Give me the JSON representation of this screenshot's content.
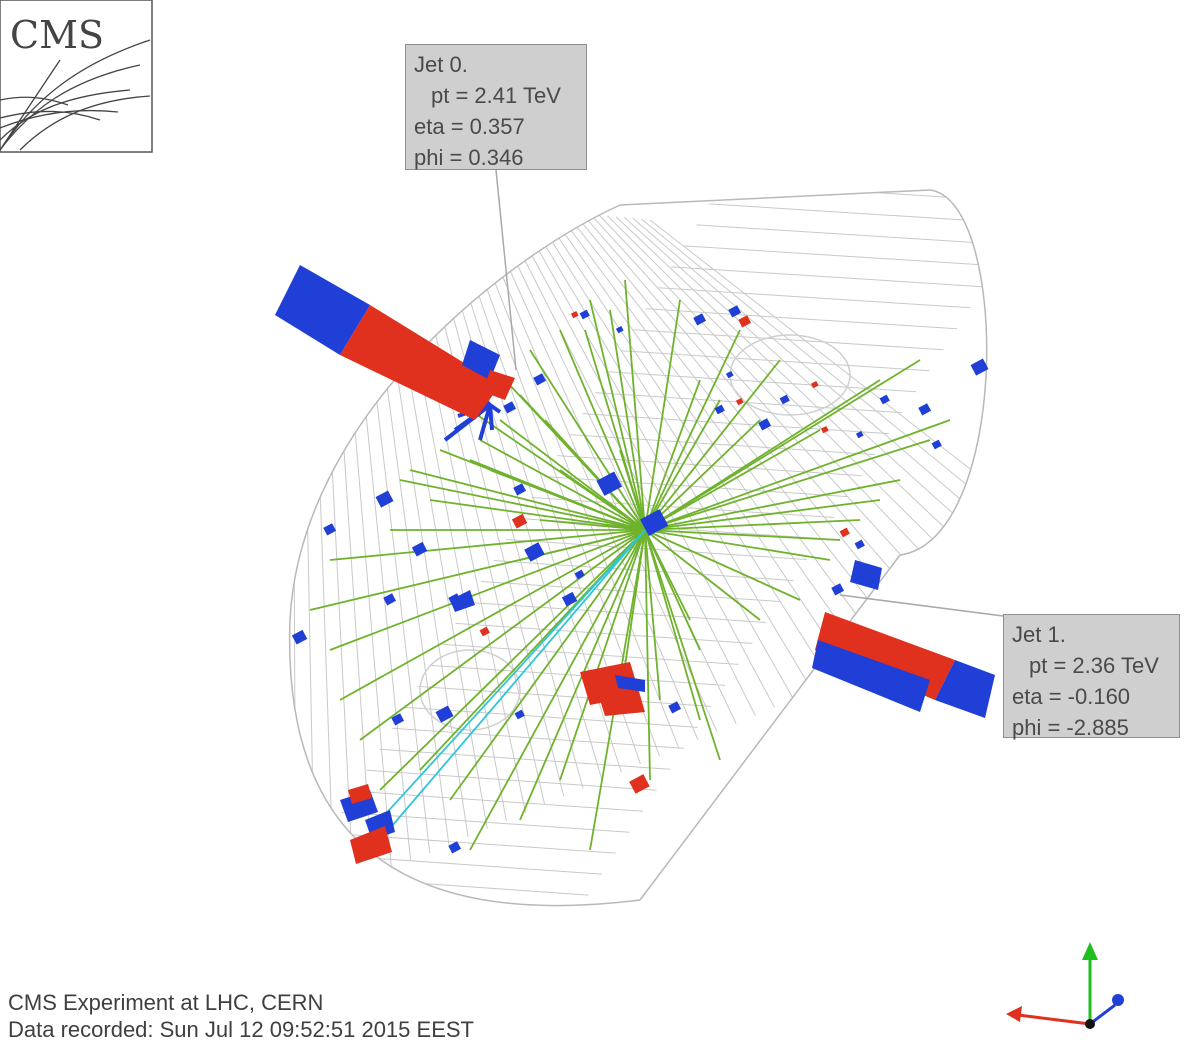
{
  "logo": {
    "text": "CMS"
  },
  "jets": [
    {
      "title": "Jet 0.",
      "pt": "pt = 2.41 TeV",
      "eta": "eta = 0.357",
      "phi": "phi = 0.346"
    },
    {
      "title": "Jet 1.",
      "pt": "pt = 2.36 TeV",
      "eta": "eta = -0.160",
      "phi": "phi = -2.885"
    }
  ],
  "footer": {
    "experiment": "CMS Experiment at LHC, CERN",
    "recorded": "Data recorded: Sun Jul 12 09:52:51 2015 EEST"
  },
  "colors": {
    "track": "#6fb22c",
    "ecal": "#e0301e",
    "hcal": "#1f3fd6",
    "muon_track": "#2cc6d8",
    "mesh": "#c8c8c8",
    "axis_x": "#e0301e",
    "axis_y": "#1fbf1f",
    "axis_z": "#1f3fd6"
  }
}
